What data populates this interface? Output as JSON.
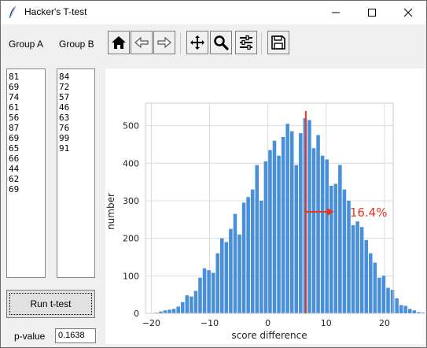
{
  "window": {
    "title": "Hacker's T-test",
    "minimize_icon": "minimize-icon",
    "maximize_icon": "maximize-icon",
    "close_icon": "close-icon"
  },
  "groups": {
    "a_label": "Group A",
    "b_label": "Group B",
    "a_values": [
      "81",
      "69",
      "74",
      "61",
      "56",
      "87",
      "69",
      "65",
      "66",
      "44",
      "62",
      "69"
    ],
    "b_values": [
      "84",
      "72",
      "57",
      "46",
      "63",
      "76",
      "99",
      "91"
    ]
  },
  "toolbar": {
    "buttons": [
      "home-icon",
      "back-icon",
      "forward-icon",
      "pan-icon",
      "zoom-icon",
      "configure-subplots-icon",
      "save-icon"
    ]
  },
  "controls": {
    "run_label": "Run t-test",
    "pvalue_label": "p-value",
    "pvalue_value": "0.1638"
  },
  "colors": {
    "bars": "#4a90d9",
    "marker": "#e8361e",
    "grid": "#dcdcdc"
  },
  "chart_data": {
    "type": "bar",
    "title": "",
    "xlabel": "score difference",
    "ylabel": "number",
    "xlim": [
      -21,
      21.5
    ],
    "ylim": [
      0,
      560
    ],
    "xticks": [
      -20,
      -10,
      0,
      10,
      20
    ],
    "yticks": [
      0,
      100,
      200,
      300,
      400,
      500
    ],
    "grid": true,
    "bin_width": 0.75,
    "bin_start": -19.5,
    "values": [
      2,
      5,
      8,
      10,
      12,
      18,
      30,
      48,
      45,
      60,
      95,
      120,
      115,
      108,
      160,
      200,
      190,
      225,
      265,
      210,
      295,
      310,
      330,
      395,
      300,
      405,
      435,
      460,
      420,
      470,
      505,
      485,
      395,
      480,
      520,
      515,
      440,
      475,
      420,
      410,
      340,
      345,
      395,
      330,
      300,
      235,
      245,
      230,
      195,
      160,
      135,
      95,
      100,
      68,
      63,
      40,
      22,
      20,
      12,
      8,
      3,
      2
    ],
    "marker": {
      "x": 6.5,
      "label": "16.4%"
    }
  }
}
